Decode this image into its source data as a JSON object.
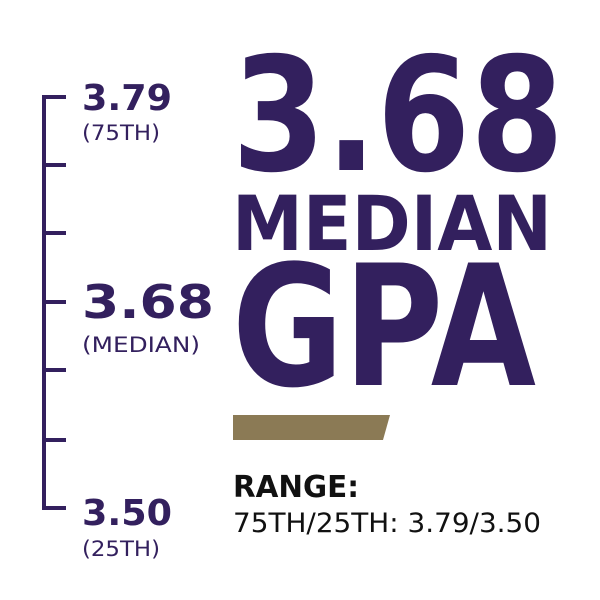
{
  "scale": {
    "labels": [
      {
        "value": "3.79",
        "note": "(75TH)"
      },
      {
        "value": "3.68",
        "note": "(MEDIAN)"
      },
      {
        "value": "3.50",
        "note": "(25TH)"
      }
    ]
  },
  "headline": {
    "number": "3.68",
    "line1": "MEDIAN",
    "line2": "GPA"
  },
  "range": {
    "title": "RANGE:",
    "text": "75TH/25TH: 3.79/3.50"
  }
}
